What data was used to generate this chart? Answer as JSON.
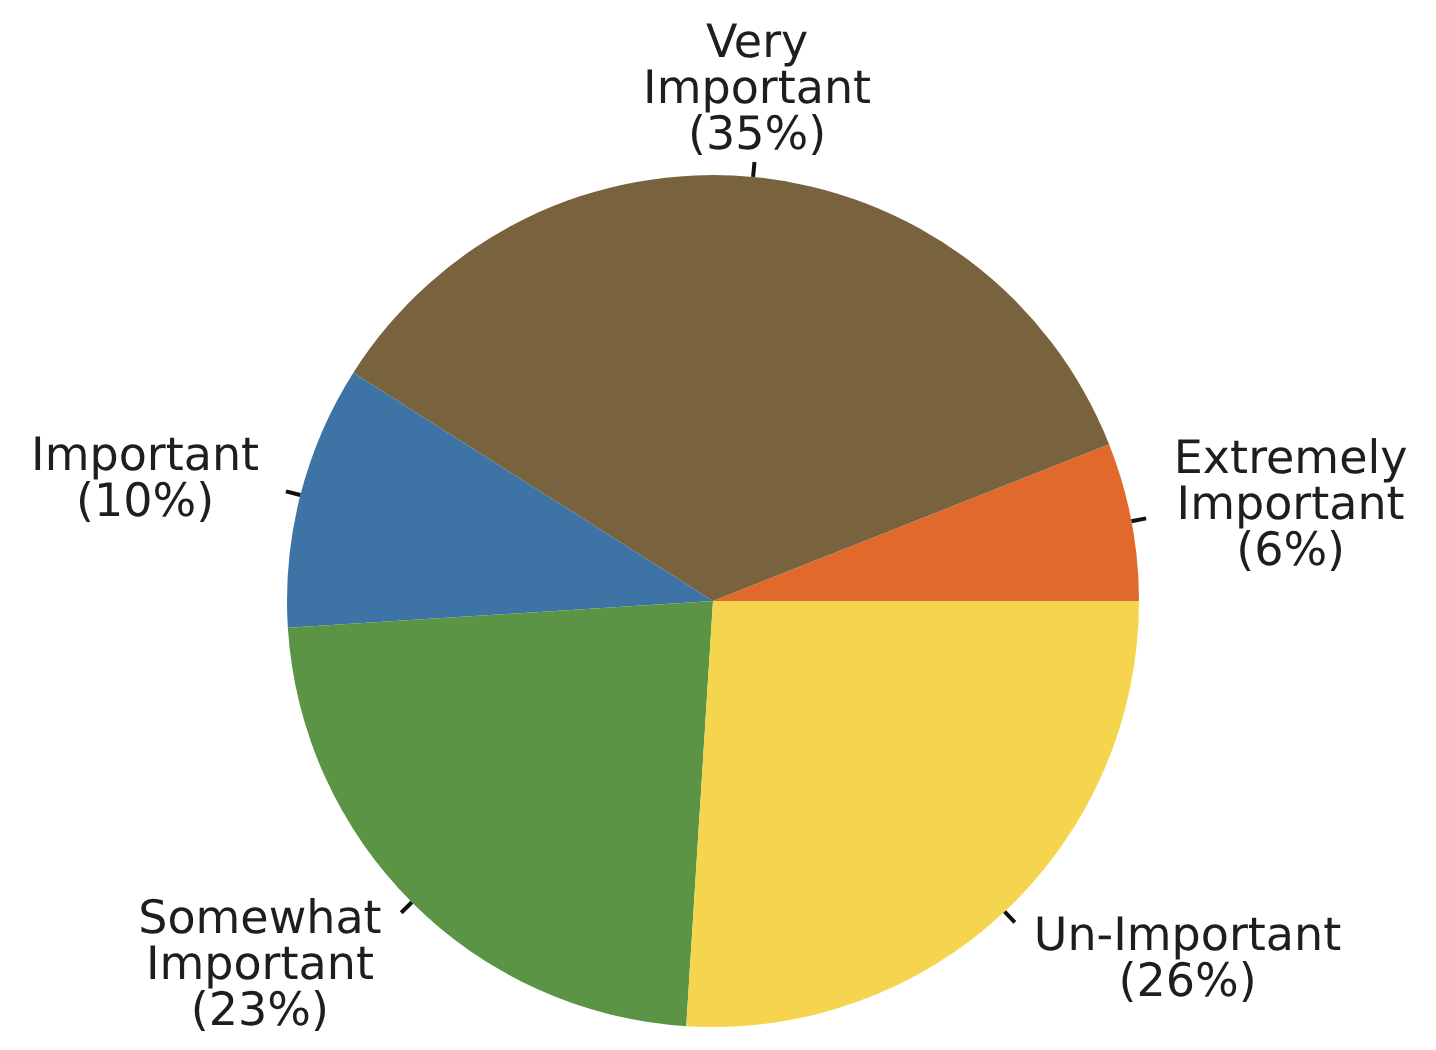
{
  "chart_data": {
    "type": "pie",
    "categories": [
      "Extremely Important",
      "Very Important",
      "Important",
      "Somewhat Important",
      "Un-Important"
    ],
    "values": [
      6,
      35,
      10,
      23,
      26
    ],
    "colors": [
      "#e0692b",
      "#78633e",
      "#3d73a5",
      "#5a9444",
      "#f6d54e"
    ],
    "value_labels": [
      "(6%)",
      "(35%)",
      "(10%)",
      "(23%)",
      "(26%)"
    ]
  }
}
